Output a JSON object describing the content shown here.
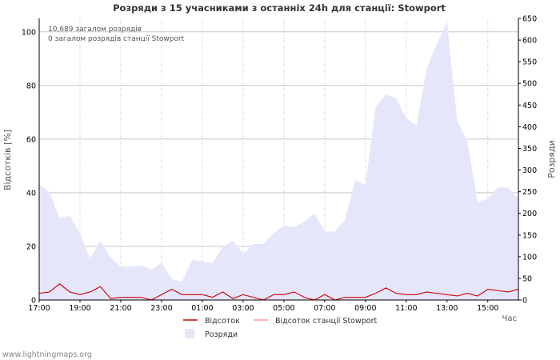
{
  "chart_data": {
    "type": "area+line",
    "title": "Розряди з 15 учасниками з останніх 24h для станції: Stowport",
    "annotations": [
      "10,689 загалом розрядів",
      "0 загалом розрядів станції Stowport"
    ],
    "ylabel_left": "Відсотків   [%]",
    "ylabel_right": "Розряди",
    "xlabel": "Час",
    "ylim_left": [
      0,
      105
    ],
    "ylim_right": [
      0,
      650
    ],
    "left_ticks": [
      0,
      20,
      40,
      60,
      80,
      100
    ],
    "right_ticks": [
      0,
      50,
      100,
      150,
      200,
      250,
      300,
      350,
      400,
      450,
      500,
      550,
      600,
      650
    ],
    "x_tick_labels": [
      "17:00",
      "19:00",
      "21:00",
      "23:00",
      "01:00",
      "03:00",
      "05:00",
      "07:00",
      "09:00",
      "11:00",
      "13:00",
      "15:00"
    ],
    "x_tick_indices": [
      0,
      4,
      8,
      12,
      16,
      20,
      24,
      28,
      32,
      36,
      40,
      44
    ],
    "num_slots": 47,
    "series": [
      {
        "name": "Розряди",
        "axis": "right",
        "style": "area",
        "color": "#e6e6fa",
        "values": [
          268,
          249,
          189,
          194,
          154,
          96,
          137,
          98,
          77,
          77,
          80,
          70,
          87,
          48,
          42,
          93,
          89,
          85,
          123,
          137,
          107,
          129,
          130,
          154,
          172,
          168,
          180,
          200,
          158,
          158,
          186,
          277,
          265,
          446,
          475,
          465,
          420,
          403,
          534,
          592,
          640,
          412,
          366,
          225,
          235,
          260,
          260,
          232
        ]
      },
      {
        "name": "Відсоток",
        "axis": "left",
        "style": "line",
        "color": "#cc0000",
        "values": [
          2.5,
          3,
          6,
          3,
          2,
          3,
          5,
          0.5,
          1,
          1,
          1,
          0,
          2,
          4,
          2,
          2,
          2,
          1,
          3,
          0.5,
          2,
          1,
          0,
          2,
          2,
          3,
          1,
          0,
          2,
          0,
          1,
          1,
          1,
          2.5,
          4.5,
          2.5,
          2,
          2,
          3,
          2.5,
          2,
          1.5,
          2.5,
          1.5,
          4,
          3.5,
          3,
          4
        ]
      },
      {
        "name": "Відсоток станції Stowport",
        "axis": "left",
        "style": "line",
        "color": "#ff9999",
        "values": [
          0,
          0,
          0,
          0,
          0,
          0,
          0,
          0,
          0,
          0,
          0,
          0,
          0,
          0,
          0,
          0,
          0,
          0,
          0,
          0,
          0,
          0,
          0,
          0,
          0,
          0,
          0,
          0,
          0,
          0,
          0,
          0,
          0,
          0,
          0,
          0,
          0,
          0,
          0,
          0,
          0,
          0,
          0,
          0,
          0,
          0,
          0,
          0
        ]
      }
    ],
    "legend": [
      {
        "label": "Відсоток",
        "color": "#cc0000",
        "kind": "line"
      },
      {
        "label": "Відсоток станції Stowport",
        "color": "#ff9999",
        "kind": "line"
      },
      {
        "label": "Розряди",
        "color": "#e6e6fa",
        "kind": "box"
      }
    ],
    "grid": true,
    "legend_position": "bottom"
  },
  "footer": {
    "watermark": "www.lightningmaps.org"
  }
}
